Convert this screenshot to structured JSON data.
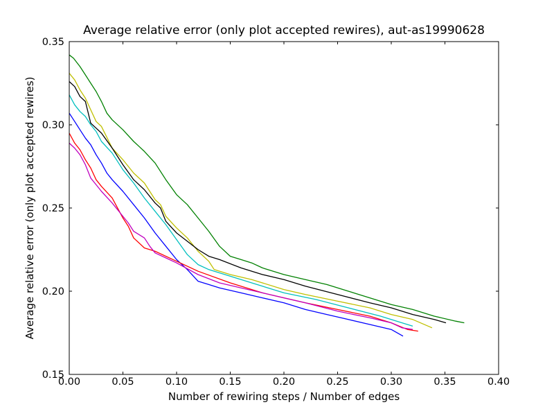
{
  "chart_data": {
    "type": "line",
    "title": "Average relative error (only plot accepted rewires), aut-as19990628",
    "xlabel": "Number of rewiring steps / Number of edges",
    "ylabel": "Average relative error (only plot accepted rewires)",
    "xlim": [
      0.0,
      0.4
    ],
    "ylim": [
      0.15,
      0.35
    ],
    "xticks": [
      "0.00",
      "0.05",
      "0.10",
      "0.15",
      "0.20",
      "0.25",
      "0.30",
      "0.35",
      "0.40"
    ],
    "yticks": [
      "0.15",
      "0.20",
      "0.25",
      "0.30",
      "0.35"
    ],
    "grid": false,
    "legend": "none",
    "series": [
      {
        "color": "#008000",
        "points": [
          [
            0.0,
            0.342
          ],
          [
            0.004,
            0.34
          ],
          [
            0.01,
            0.335
          ],
          [
            0.015,
            0.33
          ],
          [
            0.02,
            0.325
          ],
          [
            0.025,
            0.32
          ],
          [
            0.03,
            0.314
          ],
          [
            0.035,
            0.307
          ],
          [
            0.04,
            0.303
          ],
          [
            0.05,
            0.297
          ],
          [
            0.06,
            0.29
          ],
          [
            0.065,
            0.287
          ],
          [
            0.07,
            0.284
          ],
          [
            0.08,
            0.277
          ],
          [
            0.09,
            0.267
          ],
          [
            0.1,
            0.258
          ],
          [
            0.11,
            0.252
          ],
          [
            0.12,
            0.244
          ],
          [
            0.13,
            0.236
          ],
          [
            0.14,
            0.227
          ],
          [
            0.15,
            0.221
          ],
          [
            0.16,
            0.219
          ],
          [
            0.17,
            0.217
          ],
          [
            0.18,
            0.214
          ],
          [
            0.2,
            0.21
          ],
          [
            0.22,
            0.207
          ],
          [
            0.24,
            0.204
          ],
          [
            0.26,
            0.2
          ],
          [
            0.28,
            0.196
          ],
          [
            0.3,
            0.192
          ],
          [
            0.32,
            0.189
          ],
          [
            0.34,
            0.185
          ],
          [
            0.36,
            0.182
          ],
          [
            0.368,
            0.181
          ]
        ]
      },
      {
        "color": "#bfbf00",
        "points": [
          [
            0.0,
            0.331
          ],
          [
            0.005,
            0.327
          ],
          [
            0.01,
            0.321
          ],
          [
            0.015,
            0.316
          ],
          [
            0.02,
            0.309
          ],
          [
            0.025,
            0.302
          ],
          [
            0.03,
            0.299
          ],
          [
            0.04,
            0.286
          ],
          [
            0.05,
            0.279
          ],
          [
            0.06,
            0.271
          ],
          [
            0.07,
            0.265
          ],
          [
            0.08,
            0.255
          ],
          [
            0.085,
            0.252
          ],
          [
            0.09,
            0.245
          ],
          [
            0.1,
            0.238
          ],
          [
            0.11,
            0.232
          ],
          [
            0.12,
            0.224
          ],
          [
            0.13,
            0.218
          ],
          [
            0.135,
            0.213
          ],
          [
            0.15,
            0.21
          ],
          [
            0.17,
            0.207
          ],
          [
            0.2,
            0.201
          ],
          [
            0.22,
            0.198
          ],
          [
            0.25,
            0.194
          ],
          [
            0.28,
            0.19
          ],
          [
            0.3,
            0.186
          ],
          [
            0.32,
            0.183
          ],
          [
            0.338,
            0.178
          ]
        ]
      },
      {
        "color": "#000000",
        "points": [
          [
            0.0,
            0.326
          ],
          [
            0.005,
            0.323
          ],
          [
            0.01,
            0.317
          ],
          [
            0.015,
            0.314
          ],
          [
            0.02,
            0.301
          ],
          [
            0.025,
            0.298
          ],
          [
            0.03,
            0.295
          ],
          [
            0.04,
            0.286
          ],
          [
            0.05,
            0.276
          ],
          [
            0.06,
            0.267
          ],
          [
            0.07,
            0.261
          ],
          [
            0.08,
            0.253
          ],
          [
            0.085,
            0.25
          ],
          [
            0.09,
            0.242
          ],
          [
            0.1,
            0.235
          ],
          [
            0.11,
            0.23
          ],
          [
            0.12,
            0.225
          ],
          [
            0.13,
            0.221
          ],
          [
            0.14,
            0.219
          ],
          [
            0.16,
            0.214
          ],
          [
            0.18,
            0.21
          ],
          [
            0.2,
            0.207
          ],
          [
            0.22,
            0.203
          ],
          [
            0.25,
            0.198
          ],
          [
            0.28,
            0.193
          ],
          [
            0.3,
            0.19
          ],
          [
            0.32,
            0.186
          ],
          [
            0.34,
            0.183
          ],
          [
            0.351,
            0.181
          ]
        ]
      },
      {
        "color": "#00bfbf",
        "points": [
          [
            0.0,
            0.318
          ],
          [
            0.005,
            0.312
          ],
          [
            0.01,
            0.308
          ],
          [
            0.015,
            0.305
          ],
          [
            0.02,
            0.3
          ],
          [
            0.025,
            0.296
          ],
          [
            0.03,
            0.29
          ],
          [
            0.04,
            0.283
          ],
          [
            0.05,
            0.273
          ],
          [
            0.06,
            0.265
          ],
          [
            0.07,
            0.256
          ],
          [
            0.08,
            0.248
          ],
          [
            0.09,
            0.24
          ],
          [
            0.1,
            0.231
          ],
          [
            0.11,
            0.222
          ],
          [
            0.12,
            0.216
          ],
          [
            0.13,
            0.213
          ],
          [
            0.15,
            0.209
          ],
          [
            0.17,
            0.205
          ],
          [
            0.2,
            0.199
          ],
          [
            0.23,
            0.195
          ],
          [
            0.26,
            0.19
          ],
          [
            0.29,
            0.185
          ],
          [
            0.31,
            0.181
          ],
          [
            0.32,
            0.179
          ]
        ]
      },
      {
        "color": "#0000ff",
        "points": [
          [
            0.0,
            0.307
          ],
          [
            0.005,
            0.302
          ],
          [
            0.01,
            0.297
          ],
          [
            0.015,
            0.292
          ],
          [
            0.02,
            0.288
          ],
          [
            0.025,
            0.282
          ],
          [
            0.03,
            0.277
          ],
          [
            0.035,
            0.271
          ],
          [
            0.04,
            0.267
          ],
          [
            0.05,
            0.26
          ],
          [
            0.06,
            0.252
          ],
          [
            0.07,
            0.244
          ],
          [
            0.08,
            0.235
          ],
          [
            0.09,
            0.227
          ],
          [
            0.1,
            0.219
          ],
          [
            0.11,
            0.213
          ],
          [
            0.12,
            0.206
          ],
          [
            0.13,
            0.204
          ],
          [
            0.14,
            0.202
          ],
          [
            0.16,
            0.199
          ],
          [
            0.18,
            0.196
          ],
          [
            0.2,
            0.193
          ],
          [
            0.22,
            0.189
          ],
          [
            0.24,
            0.186
          ],
          [
            0.26,
            0.183
          ],
          [
            0.28,
            0.18
          ],
          [
            0.3,
            0.177
          ],
          [
            0.311,
            0.173
          ]
        ]
      },
      {
        "color": "#ff0000",
        "points": [
          [
            0.0,
            0.295
          ],
          [
            0.005,
            0.289
          ],
          [
            0.01,
            0.285
          ],
          [
            0.015,
            0.279
          ],
          [
            0.02,
            0.274
          ],
          [
            0.025,
            0.267
          ],
          [
            0.03,
            0.263
          ],
          [
            0.04,
            0.256
          ],
          [
            0.05,
            0.244
          ],
          [
            0.055,
            0.239
          ],
          [
            0.06,
            0.232
          ],
          [
            0.07,
            0.226
          ],
          [
            0.08,
            0.224
          ],
          [
            0.1,
            0.218
          ],
          [
            0.12,
            0.212
          ],
          [
            0.15,
            0.205
          ],
          [
            0.18,
            0.199
          ],
          [
            0.2,
            0.196
          ],
          [
            0.22,
            0.193
          ],
          [
            0.25,
            0.189
          ],
          [
            0.28,
            0.185
          ],
          [
            0.3,
            0.181
          ],
          [
            0.315,
            0.177
          ],
          [
            0.325,
            0.176
          ]
        ]
      },
      {
        "color": "#bf00bf",
        "points": [
          [
            0.0,
            0.289
          ],
          [
            0.005,
            0.286
          ],
          [
            0.01,
            0.282
          ],
          [
            0.015,
            0.276
          ],
          [
            0.02,
            0.268
          ],
          [
            0.025,
            0.264
          ],
          [
            0.03,
            0.26
          ],
          [
            0.04,
            0.253
          ],
          [
            0.05,
            0.245
          ],
          [
            0.055,
            0.241
          ],
          [
            0.06,
            0.236
          ],
          [
            0.07,
            0.232
          ],
          [
            0.075,
            0.227
          ],
          [
            0.08,
            0.223
          ],
          [
            0.09,
            0.22
          ],
          [
            0.1,
            0.217
          ],
          [
            0.12,
            0.21
          ],
          [
            0.14,
            0.205
          ],
          [
            0.16,
            0.202
          ],
          [
            0.18,
            0.199
          ],
          [
            0.2,
            0.196
          ],
          [
            0.22,
            0.193
          ],
          [
            0.25,
            0.188
          ],
          [
            0.28,
            0.184
          ],
          [
            0.3,
            0.181
          ],
          [
            0.31,
            0.178
          ],
          [
            0.32,
            0.177
          ]
        ]
      }
    ]
  }
}
